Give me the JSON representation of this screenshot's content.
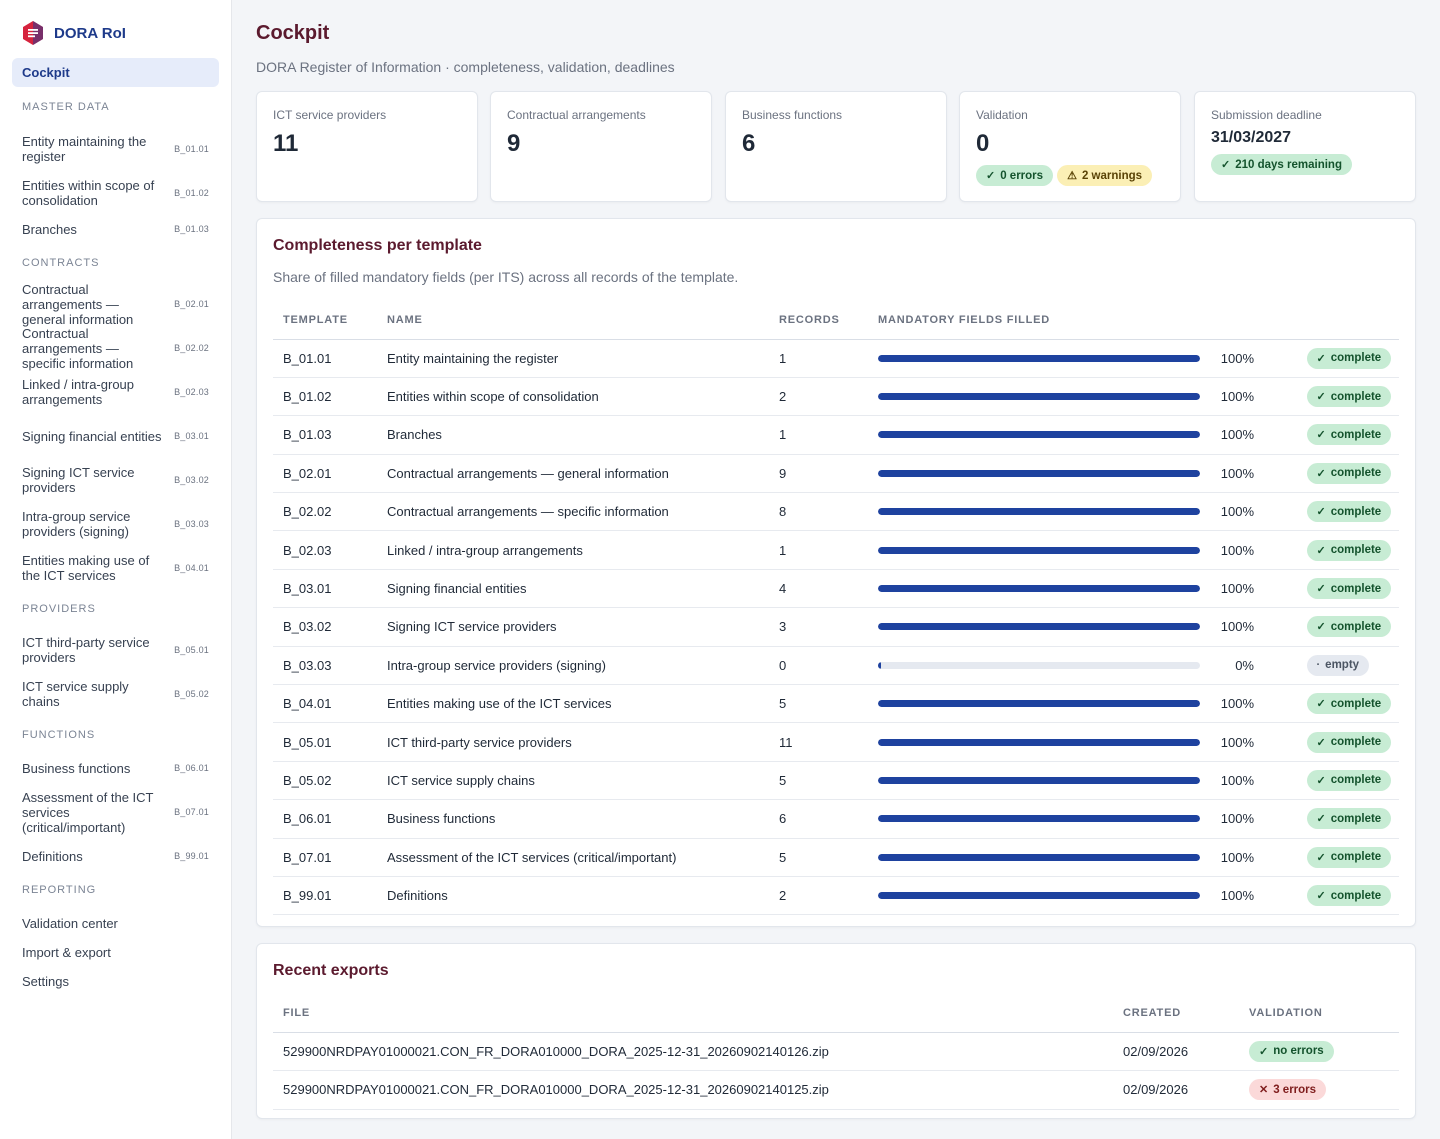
{
  "app": {
    "name": "DORA RoI",
    "brand_color": "#1e3a8a",
    "logo_color": "#d6233d"
  },
  "sidebar": {
    "cockpit": "Cockpit",
    "sections": [
      {
        "title": "MASTER DATA",
        "items": [
          {
            "label": "Entity maintaining the register",
            "code": "B_01.01"
          },
          {
            "label": "Entities within scope of consolidation",
            "code": "B_01.02"
          },
          {
            "label": "Branches",
            "code": "B_01.03"
          }
        ]
      },
      {
        "title": "CONTRACTS",
        "items": [
          {
            "label": "Contractual arrangements — general information",
            "code": "B_02.01"
          },
          {
            "label": "Contractual arrangements — specific information",
            "code": "B_02.02"
          },
          {
            "label": "Linked / intra-group arrangements",
            "code": "B_02.03"
          },
          {
            "label": "Signing financial entities",
            "code": "B_03.01"
          },
          {
            "label": "Signing ICT service providers",
            "code": "B_03.02"
          },
          {
            "label": "Intra-group service providers (signing)",
            "code": "B_03.03"
          },
          {
            "label": "Entities making use of the ICT services",
            "code": "B_04.01"
          }
        ]
      },
      {
        "title": "PROVIDERS",
        "items": [
          {
            "label": "ICT third-party service providers",
            "code": "B_05.01"
          },
          {
            "label": "ICT service supply chains",
            "code": "B_05.02"
          }
        ]
      },
      {
        "title": "FUNCTIONS",
        "items": [
          {
            "label": "Business functions",
            "code": "B_06.01"
          },
          {
            "label": "Assessment of the ICT services (critical/important)",
            "code": "B_07.01"
          },
          {
            "label": "Definitions",
            "code": "B_99.01"
          }
        ]
      },
      {
        "title": "REPORTING",
        "items": [
          {
            "label": "Validation center",
            "code": ""
          },
          {
            "label": "Import & export",
            "code": ""
          },
          {
            "label": "Settings",
            "code": ""
          }
        ]
      }
    ]
  },
  "page": {
    "title": "Cockpit",
    "subtitle": "DORA Register of Information · completeness, validation, deadlines"
  },
  "kpis": {
    "providers": {
      "label": "ICT service providers",
      "value": "11"
    },
    "contracts": {
      "label": "Contractual arrangements",
      "value": "9"
    },
    "functions": {
      "label": "Business functions",
      "value": "6"
    },
    "validation": {
      "label": "Validation",
      "value": "0",
      "errors": "0 errors",
      "warnings": "2 warnings"
    },
    "deadline": {
      "label": "Submission deadline",
      "value": "31/03/2027",
      "remaining": "210 days remaining"
    }
  },
  "completeness": {
    "title": "Completeness per template",
    "subtitle": "Share of filled mandatory fields (per ITS) across all records of the template.",
    "headers": {
      "template": "TEMPLATE",
      "name": "NAME",
      "records": "RECORDS",
      "filled": "MANDATORY FIELDS FILLED"
    },
    "rows": [
      {
        "template": "B_01.01",
        "name": "Entity maintaining the register",
        "records": "1",
        "pct": 100,
        "pct_label": "100%",
        "status": "complete"
      },
      {
        "template": "B_01.02",
        "name": "Entities within scope of consolidation",
        "records": "2",
        "pct": 100,
        "pct_label": "100%",
        "status": "complete"
      },
      {
        "template": "B_01.03",
        "name": "Branches",
        "records": "1",
        "pct": 100,
        "pct_label": "100%",
        "status": "complete"
      },
      {
        "template": "B_02.01",
        "name": "Contractual arrangements — general information",
        "records": "9",
        "pct": 100,
        "pct_label": "100%",
        "status": "complete"
      },
      {
        "template": "B_02.02",
        "name": "Contractual arrangements — specific information",
        "records": "8",
        "pct": 100,
        "pct_label": "100%",
        "status": "complete"
      },
      {
        "template": "B_02.03",
        "name": "Linked / intra-group arrangements",
        "records": "1",
        "pct": 100,
        "pct_label": "100%",
        "status": "complete"
      },
      {
        "template": "B_03.01",
        "name": "Signing financial entities",
        "records": "4",
        "pct": 100,
        "pct_label": "100%",
        "status": "complete"
      },
      {
        "template": "B_03.02",
        "name": "Signing ICT service providers",
        "records": "3",
        "pct": 100,
        "pct_label": "100%",
        "status": "complete"
      },
      {
        "template": "B_03.03",
        "name": "Intra-group service providers (signing)",
        "records": "0",
        "pct": 0,
        "pct_label": "0%",
        "status": "empty"
      },
      {
        "template": "B_04.01",
        "name": "Entities making use of the ICT services",
        "records": "5",
        "pct": 100,
        "pct_label": "100%",
        "status": "complete"
      },
      {
        "template": "B_05.01",
        "name": "ICT third-party service providers",
        "records": "11",
        "pct": 100,
        "pct_label": "100%",
        "status": "complete"
      },
      {
        "template": "B_05.02",
        "name": "ICT service supply chains",
        "records": "5",
        "pct": 100,
        "pct_label": "100%",
        "status": "complete"
      },
      {
        "template": "B_06.01",
        "name": "Business functions",
        "records": "6",
        "pct": 100,
        "pct_label": "100%",
        "status": "complete"
      },
      {
        "template": "B_07.01",
        "name": "Assessment of the ICT services (critical/important)",
        "records": "5",
        "pct": 100,
        "pct_label": "100%",
        "status": "complete"
      },
      {
        "template": "B_99.01",
        "name": "Definitions",
        "records": "2",
        "pct": 100,
        "pct_label": "100%",
        "status": "complete"
      }
    ]
  },
  "exports": {
    "title": "Recent exports",
    "headers": {
      "file": "FILE",
      "created": "CREATED",
      "validation": "VALIDATION"
    },
    "rows": [
      {
        "file": "529900NRDPAY01000021.CON_FR_DORA010000_DORA_2025-12-31_20260902140126.zip",
        "created": "02/09/2026",
        "validation": "no errors",
        "ok": true
      },
      {
        "file": "529900NRDPAY01000021.CON_FR_DORA010000_DORA_2025-12-31_20260902140125.zip",
        "created": "02/09/2026",
        "validation": "3 errors",
        "ok": false
      }
    ]
  },
  "colors": {
    "title": "#5b1a2e",
    "bar": "#1e429f",
    "complete_bg": "#c7ecd4",
    "warning_bg": "#fbefb5",
    "error_bg": "#fbd9d9"
  }
}
